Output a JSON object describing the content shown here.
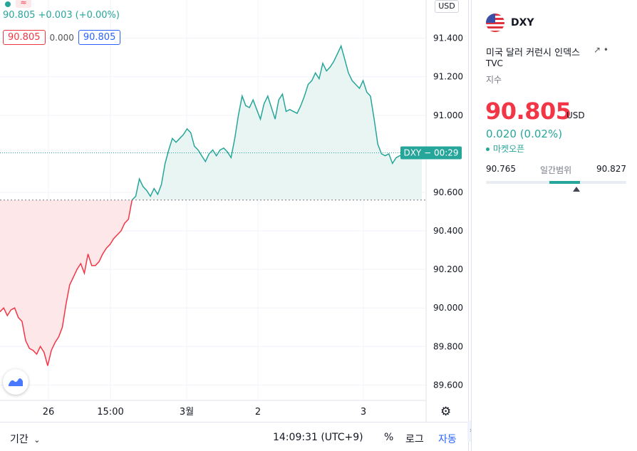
{
  "legend": {
    "price": "90.805",
    "change": "+0.003",
    "change_pct": "(+0.00%)",
    "bid": "90.805",
    "spread": "0.000",
    "ask": "90.805"
  },
  "currency_button": "USD",
  "price_label": {
    "symbol": "DXY",
    "countdown": "00:29"
  },
  "bottom_bar": {
    "period": "기간",
    "clock": "14:09:31 (UTC+9)",
    "percent": "%",
    "log": "로그",
    "auto": "자동"
  },
  "side_panel": {
    "symbol": "DXY",
    "name": "미국 달러 커런시 인덱스",
    "exchange": "TVC",
    "type": "지수",
    "price": "90.805",
    "currency": "USD",
    "change": "0.020 (0.02%)",
    "market_status": "마켓오픈",
    "range_low": "90.765",
    "range_label": "일간범위",
    "range_high": "90.827"
  },
  "colors": {
    "up": "#26a69a",
    "down": "#f23645",
    "accent": "#2962ff",
    "up_fill": "#e9f5f3",
    "down_fill": "#fde7e9"
  },
  "icons": [
    "us-flag-icon",
    "external-link-icon",
    "settings-gear-icon",
    "tradingview-logo-icon",
    "chevron-down-icon",
    "collapse-arrow-icon"
  ],
  "chart_data": {
    "type": "area",
    "symbol": "DXY",
    "baseline": 90.56,
    "last": 90.805,
    "x_ticks": [
      "26",
      "15:00",
      "3월",
      "2",
      "3"
    ],
    "y_ticks": [
      "91.400",
      "91.200",
      "91.000",
      "90.600",
      "90.400",
      "90.200",
      "90.000",
      "89.800",
      "89.600"
    ],
    "ylim": [
      89.52,
      91.58
    ],
    "grid": true,
    "x": [
      0,
      5,
      10,
      15,
      20,
      25,
      30,
      35,
      40,
      45,
      50,
      55,
      60,
      65,
      70,
      75,
      80,
      85,
      90,
      95,
      100,
      105,
      110,
      115,
      120,
      125,
      130,
      135,
      140,
      145,
      150,
      155,
      160,
      165,
      170,
      175,
      180,
      185,
      190,
      195,
      200,
      205,
      210,
      215,
      220,
      225,
      230,
      235,
      240,
      245,
      250,
      255,
      260,
      265,
      270,
      275,
      280,
      285,
      290,
      295,
      300,
      305,
      310,
      315,
      320,
      325,
      330,
      335,
      340,
      345,
      350,
      355,
      360,
      365,
      370,
      375,
      380,
      385,
      390,
      395,
      400,
      405,
      410,
      415,
      420,
      425,
      430,
      435,
      440,
      445,
      450,
      455,
      460,
      465,
      470,
      475,
      480,
      485,
      490,
      495,
      500,
      505,
      510,
      515,
      520,
      525,
      530,
      535,
      540,
      545,
      550,
      555,
      560,
      565,
      570,
      575
    ],
    "values": [
      89.98,
      90.0,
      89.96,
      89.99,
      90.0,
      89.95,
      89.93,
      89.83,
      89.79,
      89.78,
      89.76,
      89.8,
      89.77,
      89.7,
      89.78,
      89.82,
      89.85,
      89.9,
      90.02,
      90.12,
      90.16,
      90.2,
      90.23,
      90.18,
      90.28,
      90.22,
      90.22,
      90.24,
      90.28,
      90.31,
      90.33,
      90.36,
      90.38,
      90.4,
      90.44,
      90.46,
      90.56,
      90.58,
      90.67,
      90.63,
      90.61,
      90.58,
      90.62,
      90.59,
      90.64,
      90.75,
      90.82,
      90.88,
      90.86,
      90.88,
      90.9,
      90.93,
      90.91,
      90.84,
      90.82,
      90.79,
      90.76,
      90.8,
      90.82,
      90.79,
      90.82,
      90.83,
      90.81,
      90.78,
      90.88,
      91.0,
      91.1,
      91.05,
      91.04,
      91.08,
      91.03,
      90.98,
      91.06,
      91.1,
      91.04,
      90.98,
      91.08,
      91.11,
      91.02,
      91.03,
      91.02,
      91.01,
      91.05,
      91.1,
      91.16,
      91.18,
      91.22,
      91.19,
      91.27,
      91.23,
      91.25,
      91.28,
      91.32,
      91.36,
      91.29,
      91.22,
      91.18,
      91.16,
      91.14,
      91.18,
      91.12,
      91.1,
      90.98,
      90.85,
      90.8,
      90.79,
      90.8,
      90.75,
      90.78,
      90.79,
      90.8,
      90.79,
      90.8,
      90.81,
      90.8,
      90.805
    ]
  }
}
